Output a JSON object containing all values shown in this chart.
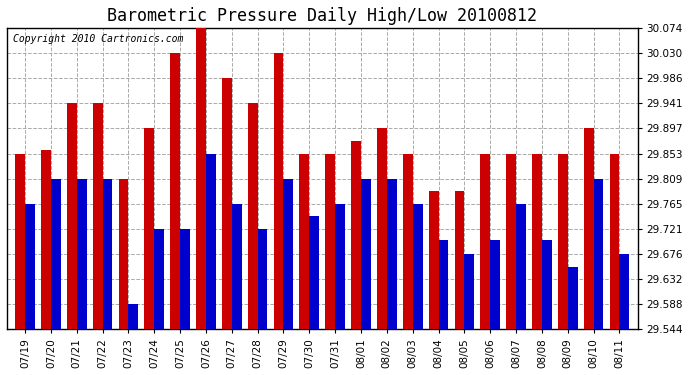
{
  "title": "Barometric Pressure Daily High/Low 20100812",
  "copyright": "Copyright 2010 Cartronics.com",
  "dates": [
    "07/19",
    "07/20",
    "07/21",
    "07/22",
    "07/23",
    "07/24",
    "07/25",
    "07/26",
    "07/27",
    "07/28",
    "07/29",
    "07/30",
    "07/31",
    "08/01",
    "08/02",
    "08/03",
    "08/04",
    "08/05",
    "08/06",
    "08/07",
    "08/08",
    "08/09",
    "08/10",
    "08/11"
  ],
  "highs": [
    29.853,
    29.86,
    29.941,
    29.941,
    29.809,
    29.897,
    30.03,
    30.074,
    29.986,
    29.941,
    30.03,
    29.853,
    29.853,
    29.875,
    29.897,
    29.853,
    29.787,
    29.787,
    29.853,
    29.853,
    29.853,
    29.853,
    29.897,
    29.853
  ],
  "lows": [
    29.765,
    29.809,
    29.809,
    29.809,
    29.588,
    29.721,
    29.721,
    29.853,
    29.765,
    29.721,
    29.809,
    29.743,
    29.765,
    29.809,
    29.809,
    29.765,
    29.7,
    29.676,
    29.7,
    29.765,
    29.7,
    29.654,
    29.809,
    29.676
  ],
  "high_color": "#cc0000",
  "low_color": "#0000cc",
  "bg_color": "#ffffff",
  "grid_color": "#aaaaaa",
  "ymin": 29.544,
  "ymax": 30.074,
  "yticks": [
    29.544,
    29.588,
    29.632,
    29.676,
    29.721,
    29.765,
    29.809,
    29.853,
    29.897,
    29.941,
    29.986,
    30.03,
    30.074
  ],
  "title_fontsize": 12,
  "copyright_fontsize": 7,
  "tick_fontsize": 7.5,
  "bar_width": 0.38
}
